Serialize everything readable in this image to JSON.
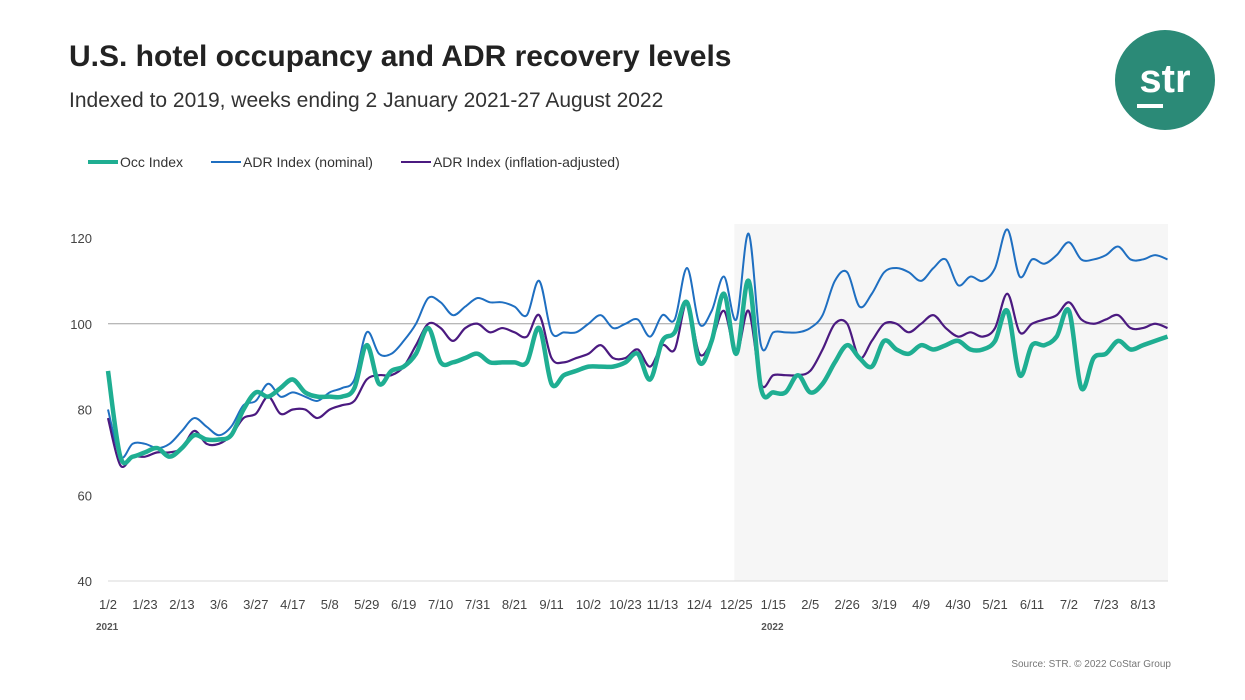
{
  "header": {
    "title": "U.S. hotel occupancy and ADR recovery levels",
    "subtitle": "Indexed to 2019, weeks ending 2 January 2021-27 August 2022"
  },
  "logo": {
    "text": "str",
    "color": "#2b8a77"
  },
  "source": "Source: STR. © 2022 CoStar Group",
  "chart_data": {
    "type": "line",
    "title": "U.S. hotel occupancy and ADR recovery levels",
    "subtitle": "Indexed to 2019, weeks ending 2 January 2021-27 August 2022",
    "ylim": [
      40,
      120
    ],
    "yticks": [
      40,
      60,
      80,
      100,
      120
    ],
    "reference_line": 100,
    "x_tick_labels": [
      "1/2",
      "1/23",
      "2/13",
      "3/6",
      "3/27",
      "4/17",
      "5/8",
      "5/29",
      "6/19",
      "7/10",
      "7/31",
      "8/21",
      "9/11",
      "10/2",
      "10/23",
      "11/13",
      "12/4",
      "12/25",
      "1/15",
      "2/5",
      "2/26",
      "3/19",
      "4/9",
      "4/30",
      "5/21",
      "6/11",
      "7/2",
      "7/23",
      "8/13"
    ],
    "x_tick_every_weeks": 3,
    "year_labels": [
      {
        "label": "2021",
        "at_tick": "1/2"
      },
      {
        "label": "2022",
        "at_tick": "1/15"
      }
    ],
    "shaded_region": {
      "from_week": "12/25/2021",
      "to_week": "8/27/2022",
      "color": "#f6f6f6"
    },
    "legend_position": "top-left",
    "grid": false,
    "series": [
      {
        "name": "Occ Index",
        "color": "#1fae92",
        "values": [
          89,
          69,
          69,
          70,
          71,
          69,
          71,
          74,
          73,
          73,
          74,
          80,
          84,
          83,
          85,
          87,
          84,
          83,
          83,
          83,
          85,
          95,
          86,
          89,
          90,
          93,
          99,
          91,
          91,
          92,
          93,
          91,
          91,
          91,
          91,
          99,
          86,
          88,
          89,
          90,
          90,
          90,
          91,
          93,
          87,
          96,
          98,
          105,
          91,
          96,
          107,
          93,
          110,
          85,
          84,
          84,
          88,
          84,
          86,
          91,
          95,
          92,
          90,
          96,
          94,
          93,
          95,
          94,
          95,
          96,
          94,
          94,
          96,
          103,
          88,
          95,
          95,
          97,
          103,
          85,
          92,
          93,
          96,
          94,
          95,
          96,
          97
        ]
      },
      {
        "name": "ADR Index (nominal)",
        "color": "#1f6fc1",
        "values": [
          80,
          69,
          72,
          72,
          71,
          72,
          75,
          78,
          76,
          74,
          76,
          81,
          82,
          86,
          83,
          84,
          83,
          82,
          84,
          85,
          87,
          98,
          93,
          93,
          96,
          100,
          106,
          105,
          102,
          104,
          106,
          105,
          105,
          104,
          102,
          110,
          98,
          98,
          98,
          100,
          102,
          99,
          100,
          101,
          97,
          102,
          101,
          113,
          100,
          103,
          111,
          101,
          121,
          95,
          98,
          98,
          98,
          99,
          102,
          110,
          112,
          104,
          107,
          112,
          113,
          112,
          110,
          113,
          115,
          109,
          111,
          110,
          113,
          122,
          111,
          115,
          114,
          116,
          119,
          115,
          115,
          116,
          118,
          115,
          115,
          116,
          115
        ]
      },
      {
        "name": "ADR Index (inflation-adjusted)",
        "color": "#4b1a80",
        "values": [
          78,
          67,
          69,
          69,
          70,
          70,
          71,
          75,
          72,
          72,
          74,
          78,
          79,
          83,
          79,
          80,
          80,
          78,
          80,
          81,
          82,
          87,
          88,
          88,
          90,
          95,
          100,
          99,
          96,
          99,
          100,
          98,
          99,
          98,
          97,
          102,
          92,
          91,
          92,
          93,
          95,
          92,
          92,
          94,
          90,
          95,
          94,
          105,
          93,
          96,
          103,
          93,
          103,
          86,
          88,
          88,
          88,
          89,
          94,
          100,
          100,
          92,
          96,
          100,
          100,
          98,
          100,
          102,
          99,
          97,
          98,
          97,
          99,
          107,
          98,
          100,
          101,
          102,
          105,
          101,
          100,
          101,
          102,
          99,
          99,
          100,
          99
        ]
      }
    ]
  }
}
